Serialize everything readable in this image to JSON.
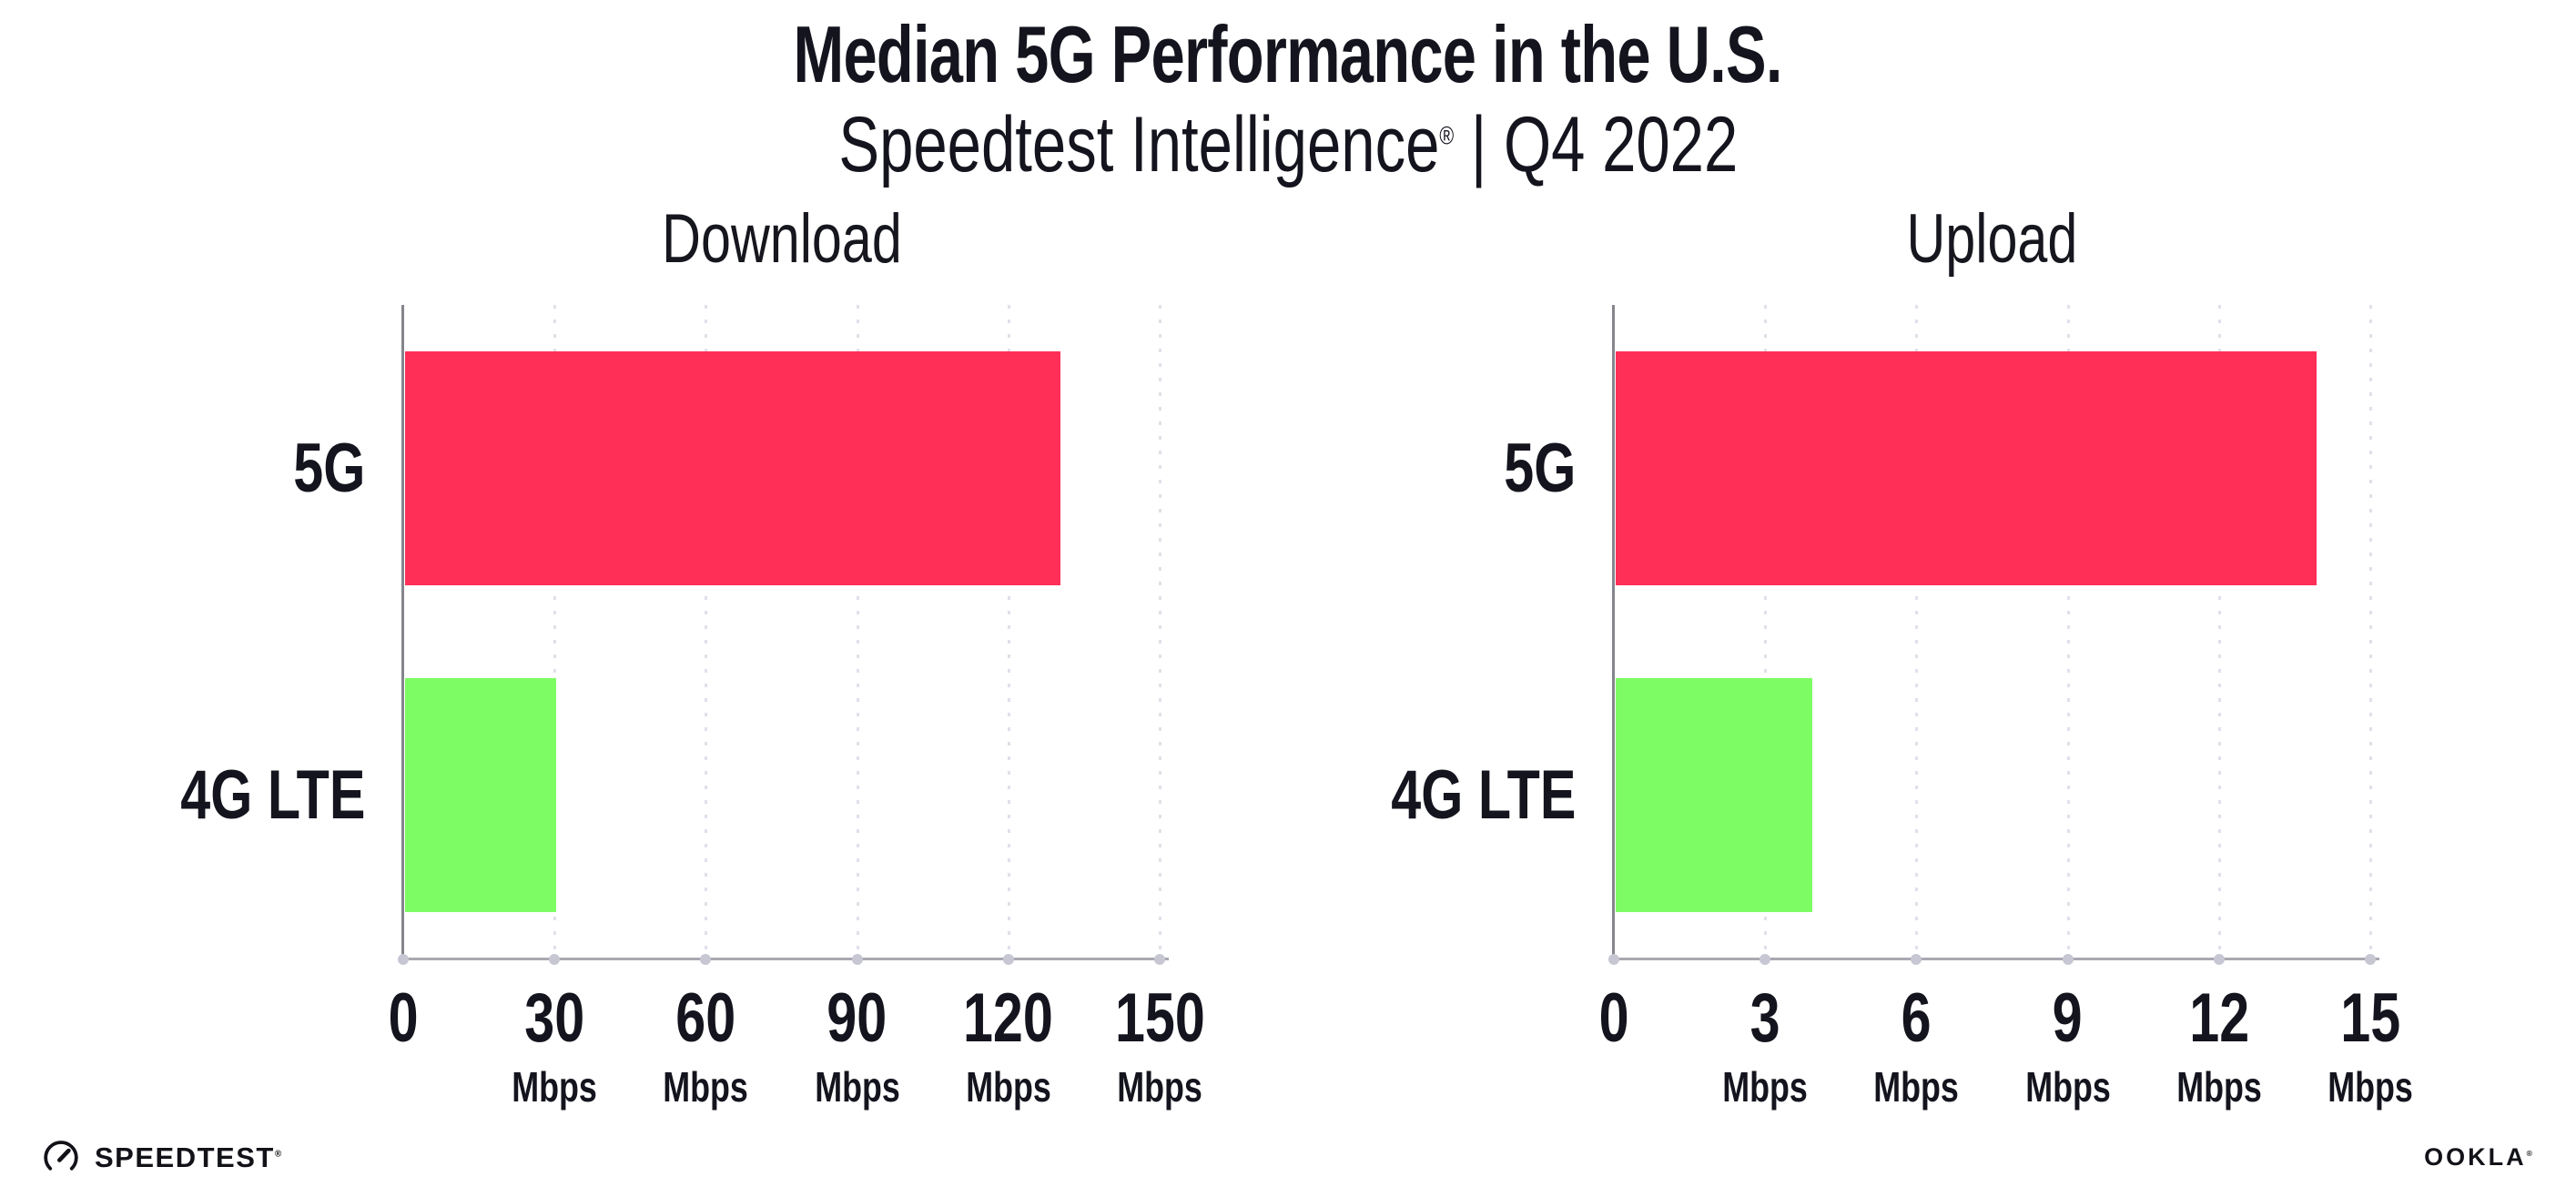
{
  "header": {
    "title": "Median 5G Performance in the U.S.",
    "subtitle_brand": "Speedtest Intelligence",
    "subtitle_mark": "®",
    "subtitle_rest": " | Q4 2022"
  },
  "footer": {
    "speedtest_text": "SPEEDTEST",
    "speedtest_mark": "®",
    "speedtest_icon": "speedtest-gauge-icon",
    "ookla_text": "OOKLA",
    "ookla_mark": "®"
  },
  "colors": {
    "background": "#FFFFFF",
    "text": "#14141E",
    "bar_5g": "#FF2F58",
    "bar_4g_lte": "#7DFC64",
    "gridline": "#E0E0EA",
    "x_axis": "#A9A9B1",
    "y_axis": "#85858D",
    "tick_dot": "#C7C7D4"
  },
  "chart_data": [
    {
      "type": "bar",
      "orientation": "horizontal",
      "title": "Download",
      "categories": [
        "5G",
        "4G LTE"
      ],
      "values": [
        130,
        30
      ],
      "unit": "Mbps",
      "xlim": [
        0,
        150
      ],
      "xticks": [
        0,
        30,
        60,
        90,
        120,
        150
      ],
      "xtick_labels": [
        "0",
        "30",
        "60",
        "90",
        "120",
        "150"
      ],
      "grid": "vertical-dotted",
      "legend": "none",
      "bar_colors": [
        "#FF2F58",
        "#7DFC64"
      ]
    },
    {
      "type": "bar",
      "orientation": "horizontal",
      "title": "Upload",
      "categories": [
        "5G",
        "4G LTE"
      ],
      "values": [
        13.9,
        3.9
      ],
      "unit": "Mbps",
      "xlim": [
        0,
        15
      ],
      "xticks": [
        0,
        3,
        6,
        9,
        12,
        15
      ],
      "xtick_labels": [
        "0",
        "3",
        "6",
        "9",
        "12",
        "15"
      ],
      "grid": "vertical-dotted",
      "legend": "none",
      "bar_colors": [
        "#FF2F58",
        "#7DFC64"
      ]
    }
  ]
}
